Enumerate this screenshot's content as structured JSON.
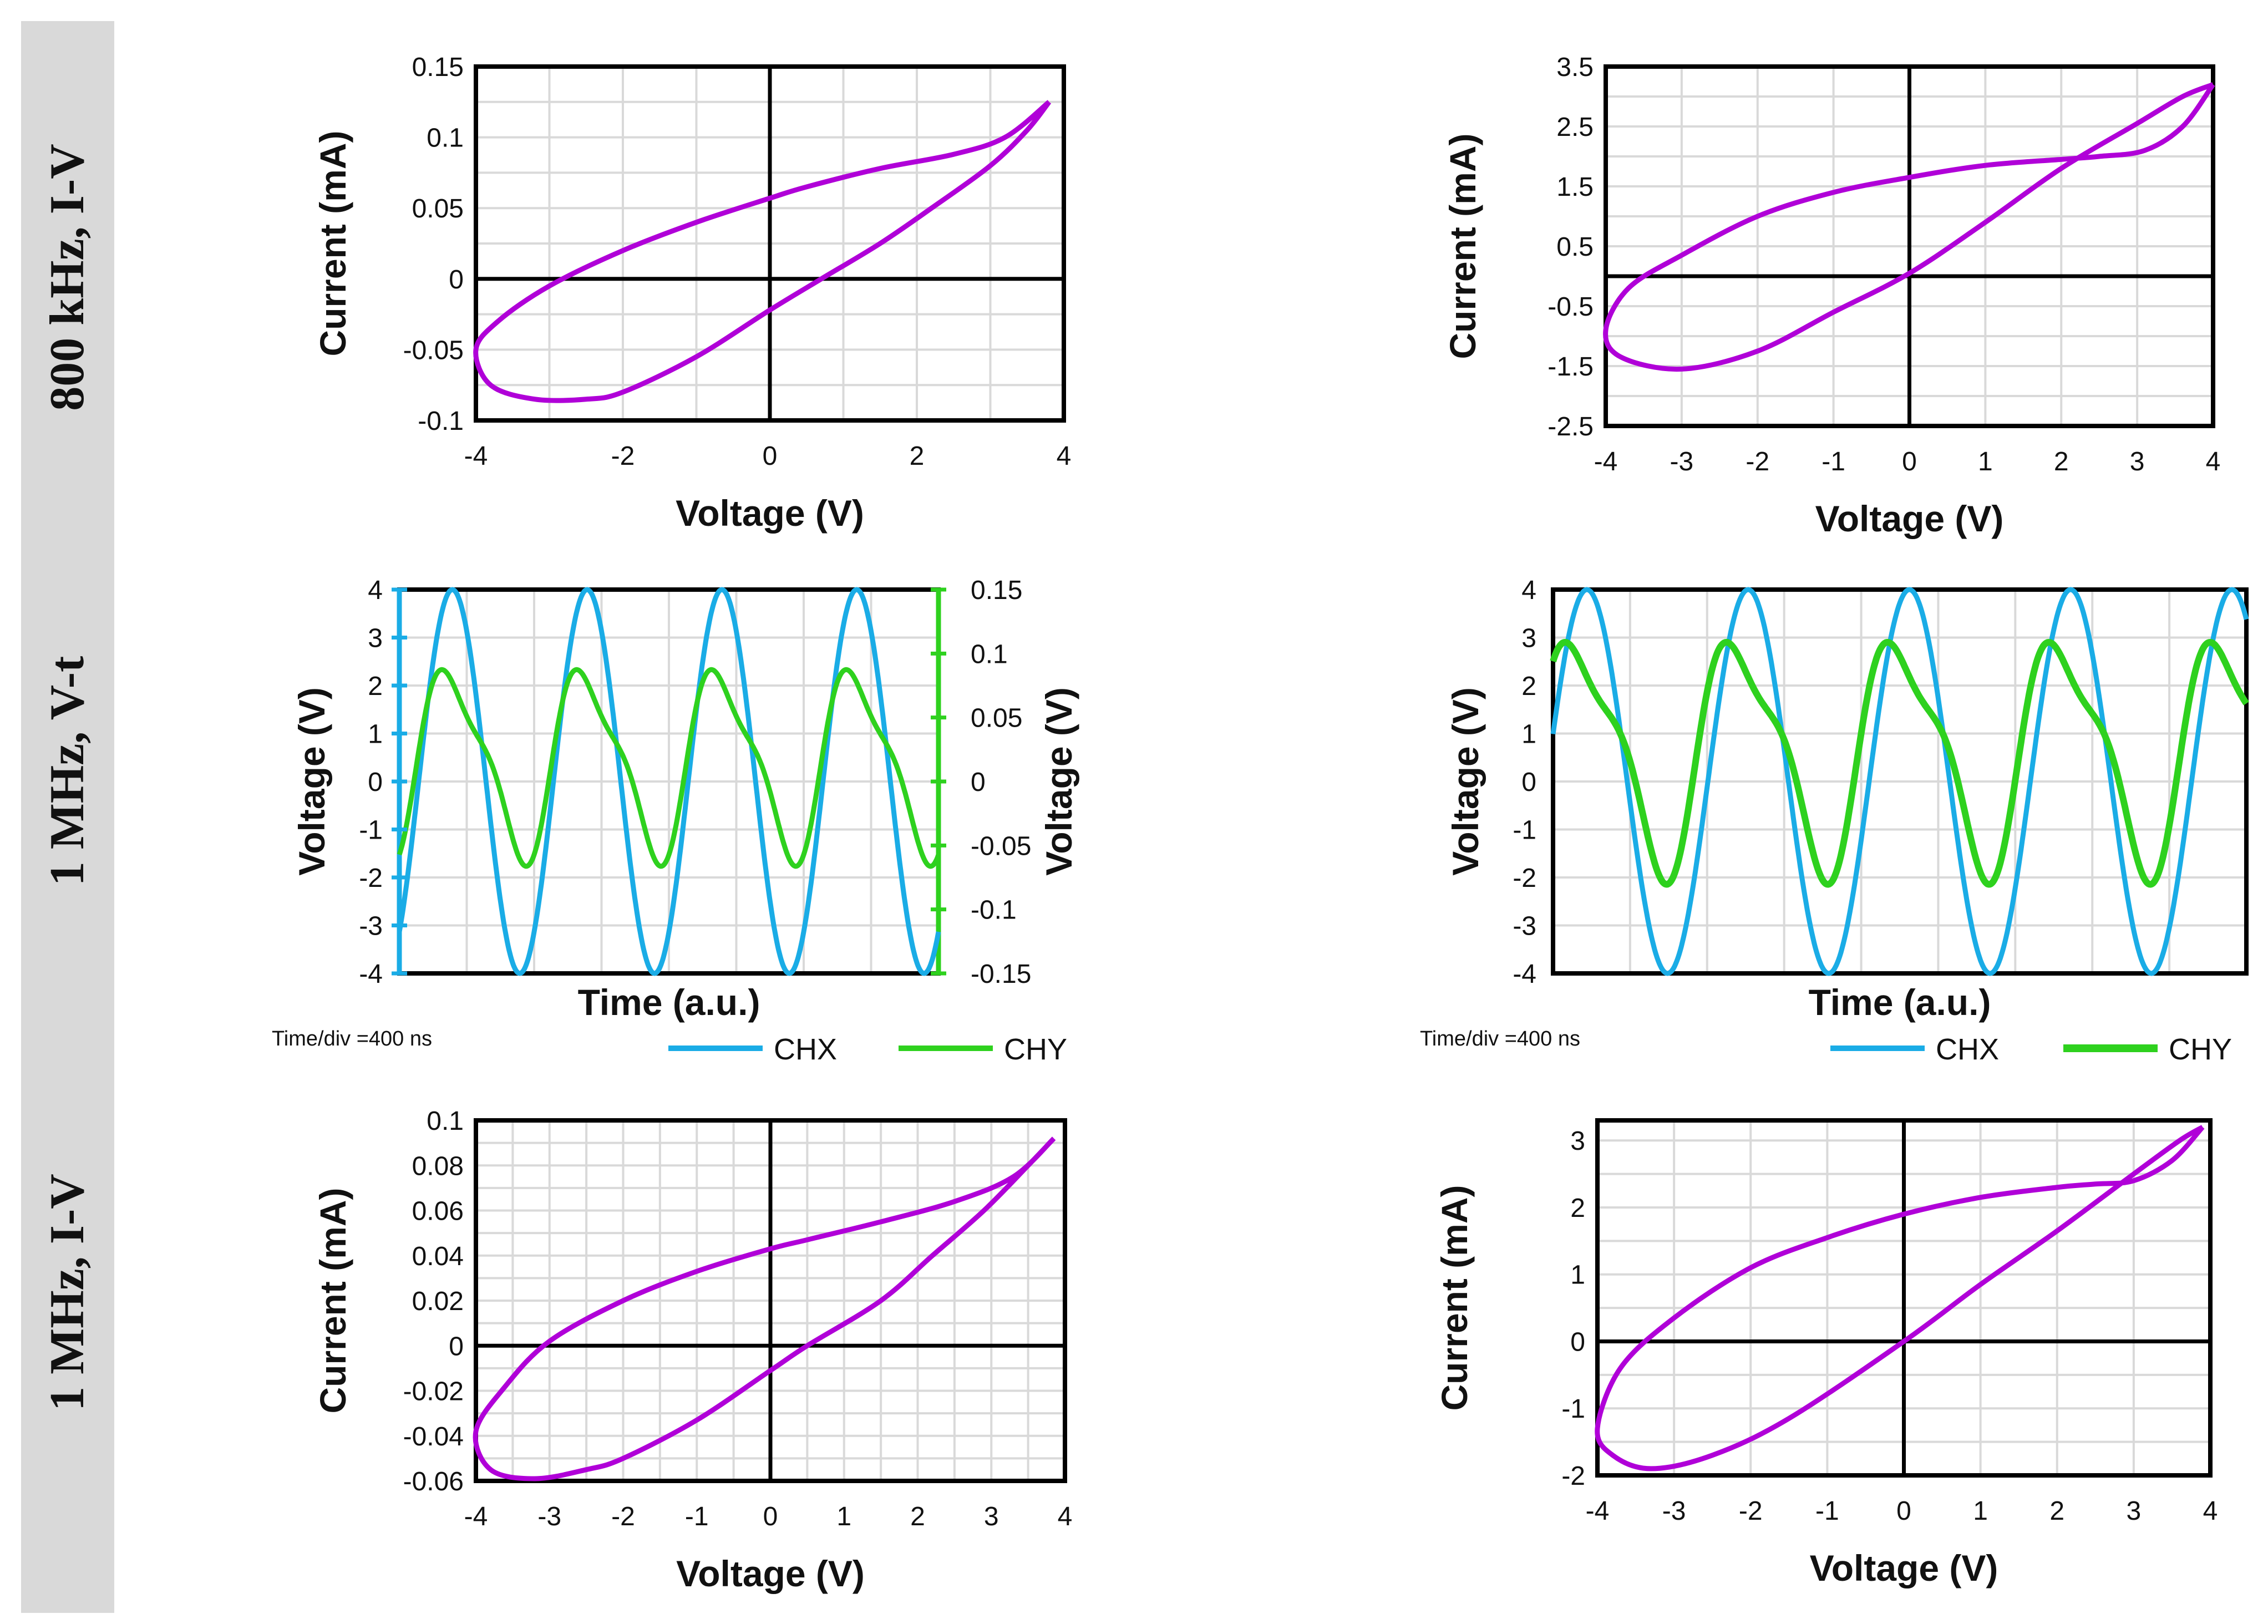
{
  "row_labels": [
    "800 kHz, I-V",
    "1 MHz, V-t",
    "1 MHz, I-V"
  ],
  "colors": {
    "loop": "#B000D8",
    "chx": "#1AACE6",
    "chy": "#2ED11E",
    "band": "#D9D9D9",
    "grid": "#D9D9D9",
    "axis": "#000000"
  },
  "chart_data": [
    {
      "id": "iv-800k-left",
      "type": "line",
      "title": "",
      "xlabel": "Voltage (V)",
      "ylabel": "Current (mA)",
      "xlim": [
        -4,
        4
      ],
      "ylim": [
        -0.1,
        0.15
      ],
      "xticks": [
        -4,
        -2,
        0,
        2,
        4
      ],
      "yticks": [
        -0.1,
        -0.05,
        0,
        0.05,
        0.1,
        0.15
      ],
      "xtick_labels": [
        "-4",
        "-2",
        "0",
        "2",
        "4"
      ],
      "ytick_labels": [
        "-0.1",
        "-0.05",
        "0",
        "0.05",
        "0.1",
        "0.15"
      ],
      "xgrid_step": 1,
      "ygrid_step": 0.025,
      "series": [
        {
          "name": "loop",
          "x": [
            3.8,
            3.2,
            2.5,
            1.5,
            0.5,
            0,
            -1,
            -2,
            -3,
            -3.7,
            -4,
            -3.8,
            -3.2,
            -2.5,
            -2,
            -1,
            0,
            0.7,
            1.5,
            2.2,
            3,
            3.5,
            3.8
          ],
          "y": [
            0.125,
            0.1,
            0.088,
            0.078,
            0.065,
            0.057,
            0.04,
            0.02,
            -0.005,
            -0.03,
            -0.05,
            -0.075,
            -0.085,
            -0.085,
            -0.08,
            -0.055,
            -0.022,
            0,
            0.025,
            0.05,
            0.08,
            0.105,
            0.125
          ]
        }
      ]
    },
    {
      "id": "iv-800k-right",
      "type": "line",
      "title": "",
      "xlabel": "Voltage (V)",
      "ylabel": "Current (mA)",
      "xlim": [
        -4,
        4
      ],
      "ylim": [
        -2.5,
        3.5
      ],
      "xticks": [
        -4,
        -3,
        -2,
        -1,
        0,
        1,
        2,
        3,
        4
      ],
      "yticks": [
        -2.5,
        -1.5,
        -0.5,
        0.5,
        1.5,
        2.5,
        3.5
      ],
      "xtick_labels": [
        "-4",
        "-3",
        "-2",
        "-1",
        "0",
        "1",
        "2",
        "3",
        "4"
      ],
      "ytick_labels": [
        "-2.5",
        "-1.5",
        "-0.5",
        "0.5",
        "1.5",
        "2.5",
        "3.5"
      ],
      "xgrid_step": 1,
      "ygrid_step": 0.5,
      "series": [
        {
          "name": "loop",
          "x": [
            4,
            3.6,
            3.1,
            2.5,
            2,
            1,
            0,
            -1,
            -2,
            -3,
            -3.7,
            -4,
            -3.8,
            -3,
            -2,
            -1,
            0,
            1,
            2,
            3,
            3.6,
            4
          ],
          "y": [
            3.2,
            2.5,
            2.1,
            2,
            1.95,
            1.85,
            1.65,
            1.4,
            1,
            0.35,
            -0.2,
            -0.9,
            -1.35,
            -1.55,
            -1.25,
            -0.6,
            0.05,
            0.9,
            1.8,
            2.55,
            3,
            3.2
          ]
        }
      ]
    },
    {
      "id": "vt-1m-left",
      "type": "line",
      "title": "",
      "xlabel": "Time (a.u.)",
      "ylabel": "Voltage (V)",
      "y2label": "Voltage (V)",
      "ylim": [
        -4,
        4
      ],
      "y2lim": [
        -0.15,
        0.15
      ],
      "yticks": [
        -4,
        -3,
        -2,
        -1,
        0,
        1,
        2,
        3,
        4
      ],
      "ytick_labels": [
        "-4",
        "-3",
        "-2",
        "-1",
        "0",
        "1",
        "2",
        "3",
        "4"
      ],
      "y2ticks": [
        -0.15,
        -0.1,
        -0.05,
        0,
        0.05,
        0.1,
        0.15
      ],
      "y2tick_labels": [
        "-0.15",
        "-0.1",
        "-0.05",
        "0",
        "0.05",
        "0.1",
        "0.15"
      ],
      "note": "Time/div =400 ns",
      "legend": [
        "CHX",
        "CHY"
      ],
      "legend_position": "bottom",
      "series": [
        {
          "name": "CHX",
          "axis": "left",
          "amplitude": 4,
          "cycles": 4,
          "phase": 0.78,
          "values_at_peaks": 4,
          "values_at_troughs": -4
        },
        {
          "name": "CHY",
          "axis": "right",
          "amplitude": 0.09,
          "min": -0.06,
          "cycles": 4,
          "phase": 0.78
        }
      ]
    },
    {
      "id": "vt-1m-right",
      "type": "line",
      "title": "",
      "xlabel": "Time (a.u.)",
      "ylabel": "Voltage (V)",
      "ylim": [
        -4,
        4
      ],
      "yticks": [
        -4,
        -3,
        -2,
        -1,
        0,
        1,
        2,
        3,
        4
      ],
      "ytick_labels": [
        "-4",
        "-3",
        "-2",
        "-1",
        "0",
        "1",
        "2",
        "3",
        "4"
      ],
      "note": "Time/div =400 ns",
      "legend": [
        "CHX",
        "CHY"
      ],
      "legend_position": "bottom",
      "series": [
        {
          "name": "CHX",
          "amplitude": 4,
          "cycles": 4.3,
          "phase": 0
        },
        {
          "name": "CHY",
          "max": 3.25,
          "min": -1.95,
          "cycles": 4.3,
          "phase": 0.15
        }
      ]
    },
    {
      "id": "iv-1m-left",
      "type": "line",
      "title": "",
      "xlabel": "Voltage (V)",
      "ylabel": "Current (mA)",
      "xlim": [
        -4,
        4
      ],
      "ylim": [
        -0.06,
        0.1
      ],
      "xticks": [
        -4,
        -3,
        -2,
        -1,
        0,
        1,
        2,
        3,
        4
      ],
      "yticks": [
        -0.06,
        -0.04,
        -0.02,
        0,
        0.02,
        0.04,
        0.06,
        0.08,
        0.1
      ],
      "xtick_labels": [
        "-4",
        "-3",
        "-2",
        "-1",
        "0",
        "1",
        "2",
        "3",
        "4"
      ],
      "ytick_labels": [
        "-0.06",
        "-0.04",
        "-0.02",
        "0",
        "0.02",
        "0.04",
        "0.06",
        "0.08",
        "0.1"
      ],
      "xgrid_step": 0.5,
      "ygrid_step": 0.01,
      "series": [
        {
          "name": "loop",
          "x": [
            3.85,
            3.3,
            2.5,
            1.5,
            0.5,
            0,
            -1,
            -2,
            -3,
            -3.6,
            -4,
            -3.8,
            -3.2,
            -2.5,
            -2,
            -1,
            0,
            0.5,
            1.5,
            2.2,
            2.9,
            3.5,
            3.85
          ],
          "y": [
            0.092,
            0.075,
            0.064,
            0.055,
            0.047,
            0.043,
            0.033,
            0.02,
            0.002,
            -0.018,
            -0.038,
            -0.055,
            -0.059,
            -0.055,
            -0.05,
            -0.033,
            -0.011,
            0,
            0.02,
            0.04,
            0.06,
            0.08,
            0.092
          ]
        }
      ]
    },
    {
      "id": "iv-1m-right",
      "type": "line",
      "title": "",
      "xlabel": "Voltage (V)",
      "ylabel": "Current (mA)",
      "xlim": [
        -4,
        4
      ],
      "ylim": [
        -2,
        3.3
      ],
      "xticks": [
        -4,
        -3,
        -2,
        -1,
        0,
        1,
        2,
        3,
        4
      ],
      "yticks": [
        -2,
        -1,
        0,
        1,
        2,
        3
      ],
      "xtick_labels": [
        "-4",
        "-3",
        "-2",
        "-1",
        "0",
        "1",
        "2",
        "3",
        "4"
      ],
      "ytick_labels": [
        "-2",
        "-1",
        "0",
        "1",
        "2",
        "3"
      ],
      "xgrid_step": 1,
      "ygrid_step": 0.5,
      "series": [
        {
          "name": "loop",
          "x": [
            3.9,
            3.5,
            3,
            2.5,
            2,
            1,
            0,
            -1,
            -2,
            -3,
            -3.7,
            -4,
            -3.8,
            -3.3,
            -2.5,
            -1.5,
            0,
            1,
            2,
            3,
            3.6,
            3.9
          ],
          "y": [
            3.2,
            2.7,
            2.4,
            2.35,
            2.3,
            2.15,
            1.9,
            1.55,
            1.1,
            0.35,
            -0.4,
            -1.3,
            -1.7,
            -1.9,
            -1.7,
            -1.15,
            0,
            0.85,
            1.65,
            2.5,
            3,
            3.2
          ]
        }
      ]
    }
  ]
}
